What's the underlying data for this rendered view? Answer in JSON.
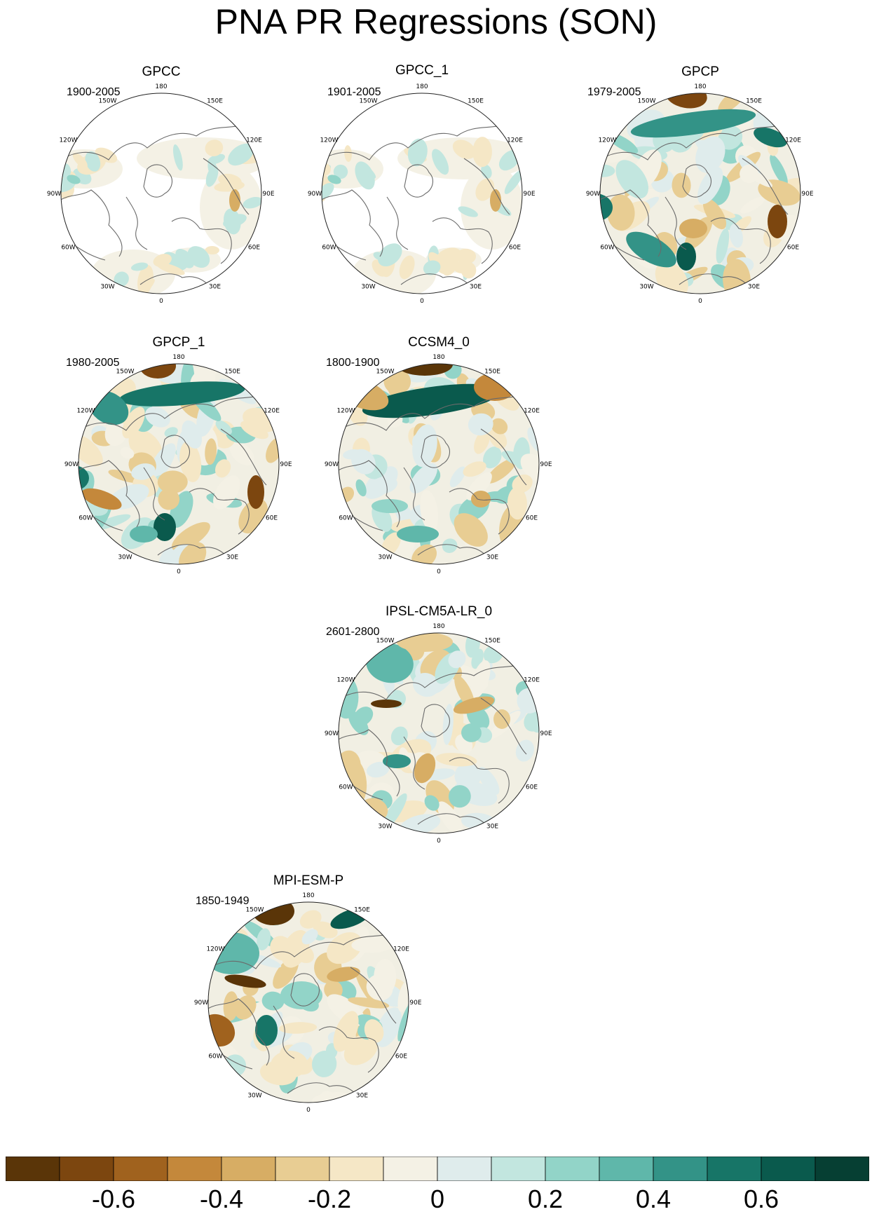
{
  "title": "PNA PR Regressions (SON)",
  "longitude_labels": [
    "180",
    "150E",
    "120E",
    "90E",
    "60E",
    "30E",
    "0",
    "30W",
    "60W",
    "90W",
    "120W",
    "150W"
  ],
  "panels": [
    {
      "title": "GPCC",
      "period": "1900-2005",
      "coverage": "land-only"
    },
    {
      "title": "GPCC_1",
      "period": "1901-2005",
      "coverage": "land-only"
    },
    {
      "title": "GPCP",
      "period": "1979-2005",
      "coverage": "global"
    },
    {
      "title": "GPCP_1",
      "period": "1980-2005",
      "coverage": "global"
    },
    {
      "title": "CCSM4_0",
      "period": "1800-1900",
      "coverage": "global"
    },
    {
      "title": "IPSL-CM5A-LR_0",
      "period": "2601-2800",
      "coverage": "global"
    },
    {
      "title": "MPI-ESM-P",
      "period": "1850-1949",
      "coverage": "global"
    }
  ],
  "colorbar": {
    "tick_labels": [
      "-0.6",
      "-0.4",
      "-0.2",
      "0",
      "0.2",
      "0.4",
      "0.6"
    ],
    "colors": [
      "#5a3508",
      "#7c460f",
      "#a0621e",
      "#c4883b",
      "#d7ad64",
      "#e8cd93",
      "#f5e7c6",
      "#f4f1e5",
      "#dfecec",
      "#c2e6df",
      "#92d4c8",
      "#5fb7aa",
      "#339387",
      "#177567",
      "#0a5a4d",
      "#063f33"
    ]
  }
}
